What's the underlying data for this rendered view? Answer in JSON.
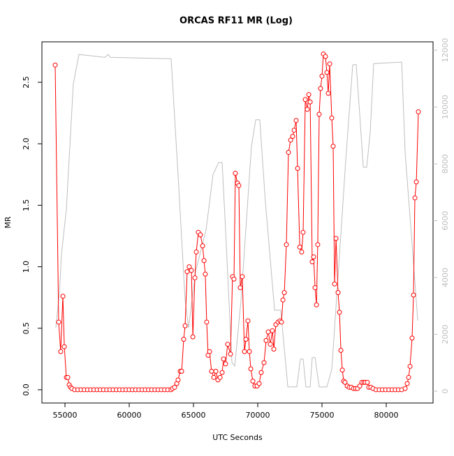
{
  "chart_data": {
    "type": "line",
    "title": "ORCAS RF11 MR (Log)",
    "x_label": "UTC Seconds",
    "y_label": "MR",
    "xlim": [
      53207,
      83641
    ],
    "xticks": [
      55000,
      60000,
      65000,
      70000,
      75000,
      80000
    ],
    "ylim": [
      -0.108,
      2.829
    ],
    "yticks": [
      {
        "value": 0,
        "label": "0.0"
      },
      0.5,
      {
        "value": 1,
        "label": "1.0"
      },
      1.5,
      {
        "value": 2,
        "label": "2.0"
      },
      2.5
    ],
    "y2lim": [
      -417,
      12294
    ],
    "y2ticks": [
      0,
      2000,
      4000,
      6000,
      8000,
      10000,
      12000
    ],
    "y2_color": "#bebebe",
    "series": [
      {
        "color": "#ff0000",
        "markers": true,
        "x": [
          54240,
          54510,
          54670,
          54840,
          54950,
          55110,
          55220,
          55330,
          55440,
          55540,
          55750,
          56000,
          56250,
          56500,
          56750,
          57000,
          57250,
          57500,
          57750,
          58000,
          58250,
          58500,
          58750,
          59000,
          59250,
          59500,
          59750,
          60000,
          60250,
          60500,
          60750,
          61000,
          61250,
          61500,
          61750,
          62000,
          62250,
          62500,
          62750,
          63000,
          63250,
          63370,
          63530,
          63700,
          63800,
          63970,
          64080,
          64240,
          64350,
          64510,
          64670,
          64840,
          64950,
          65110,
          65220,
          65380,
          65540,
          65710,
          65820,
          65920,
          66030,
          66140,
          66250,
          66410,
          66580,
          66740,
          66900,
          67070,
          67230,
          67340,
          67500,
          67660,
          67880,
          68040,
          68150,
          68260,
          68420,
          68530,
          68640,
          68800,
          68970,
          69080,
          69240,
          69350,
          69460,
          69620,
          69780,
          69950,
          70110,
          70270,
          70490,
          70650,
          70820,
          70980,
          71140,
          71250,
          71410,
          71580,
          71740,
          71850,
          71960,
          72070,
          72230,
          72390,
          72560,
          72720,
          72830,
          72990,
          73100,
          73270,
          73420,
          73530,
          73700,
          73860,
          73970,
          74080,
          74240,
          74350,
          74460,
          74570,
          74670,
          74780,
          74890,
          75000,
          75110,
          75270,
          75380,
          75490,
          75600,
          75760,
          75870,
          75980,
          76090,
          76250,
          76360,
          76470,
          76580,
          76690,
          76790,
          76960,
          77120,
          77280,
          77450,
          77610,
          77770,
          77940,
          78100,
          78260,
          78370,
          78530,
          78640,
          78800,
          78970,
          79200,
          79450,
          79700,
          79950,
          80200,
          80450,
          80700,
          80950,
          81200,
          81470,
          81630,
          81740,
          81850,
          82010,
          82120,
          82230,
          82340,
          82500
        ],
        "values": [
          2.64,
          0.55,
          0.31,
          0.76,
          0.35,
          0.1,
          0.1,
          0.04,
          0.02,
          0.01,
          0,
          0,
          0,
          0,
          0,
          0,
          0,
          0,
          0,
          0,
          0,
          0,
          0,
          0,
          0,
          0,
          0,
          0,
          0,
          0,
          0,
          0,
          0,
          0,
          0,
          0,
          0,
          0,
          0,
          0,
          0,
          0.01,
          0.02,
          0.05,
          0.08,
          0.15,
          0.15,
          0.41,
          0.52,
          0.96,
          1.0,
          0.97,
          0.43,
          0.91,
          1.12,
          1.28,
          1.26,
          1.17,
          1.05,
          0.94,
          0.55,
          0.28,
          0.31,
          0.15,
          0.1,
          0.15,
          0.08,
          0.1,
          0.14,
          0.25,
          0.21,
          0.37,
          0.29,
          0.92,
          0.9,
          1.76,
          1.68,
          1.66,
          0.83,
          0.92,
          0.31,
          0.41,
          0.56,
          0.31,
          0.17,
          0.07,
          0.03,
          0.03,
          0.05,
          0.14,
          0.22,
          0.4,
          0.47,
          0.37,
          0.48,
          0.33,
          0.53,
          0.55,
          0.56,
          0.55,
          0.73,
          0.79,
          1.18,
          1.93,
          2.03,
          2.06,
          2.11,
          2.19,
          1.8,
          1.16,
          1.12,
          1.28,
          2.36,
          2.28,
          2.4,
          2.34,
          1.04,
          1.08,
          0.83,
          0.69,
          1.18,
          2.24,
          2.45,
          2.55,
          2.73,
          2.71,
          2.58,
          2.41,
          2.65,
          2.21,
          1.98,
          0.86,
          1.23,
          0.79,
          0.63,
          0.32,
          0.16,
          0.07,
          0.06,
          0.03,
          0.02,
          0.02,
          0.01,
          0.01,
          0.01,
          0.03,
          0.06,
          0.06,
          0.06,
          0.06,
          0.02,
          0.02,
          0.01,
          0,
          0,
          0,
          0,
          0,
          0,
          0,
          0,
          0,
          0.01,
          0.05,
          0.1,
          0.19,
          0.42,
          0.77,
          1.56,
          1.69,
          2.26
        ]
      },
      {
        "color": "#bebebe",
        "axis": "y2",
        "markers": false,
        "x": [
          54290,
          54570,
          54730,
          55110,
          55650,
          56090,
          58100,
          58370,
          58530,
          63260,
          63800,
          64350,
          64620,
          65160,
          65980,
          66520,
          66960,
          67230,
          67500,
          67990,
          68210,
          68700,
          69510,
          69840,
          70160,
          70600,
          71310,
          71790,
          72340,
          73040,
          73320,
          73530,
          73750,
          74080,
          74240,
          74460,
          74780,
          75380,
          75760,
          76310,
          76850,
          77390,
          77660,
          77940,
          78210,
          78480,
          78750,
          79020,
          81200,
          81470,
          82010,
          82450
        ],
        "values": [
          2230,
          3460,
          4810,
          6400,
          10820,
          11850,
          11750,
          11850,
          11750,
          11700,
          7630,
          3210,
          2230,
          4200,
          5670,
          7630,
          8050,
          8050,
          5670,
          1010,
          880,
          3210,
          8610,
          9550,
          9550,
          6650,
          2850,
          2850,
          150,
          150,
          1130,
          1130,
          150,
          150,
          1180,
          1180,
          150,
          150,
          760,
          4440,
          8120,
          11480,
          11500,
          9720,
          7880,
          7880,
          9100,
          11530,
          11580,
          8370,
          5180,
          2480
        ]
      }
    ]
  }
}
